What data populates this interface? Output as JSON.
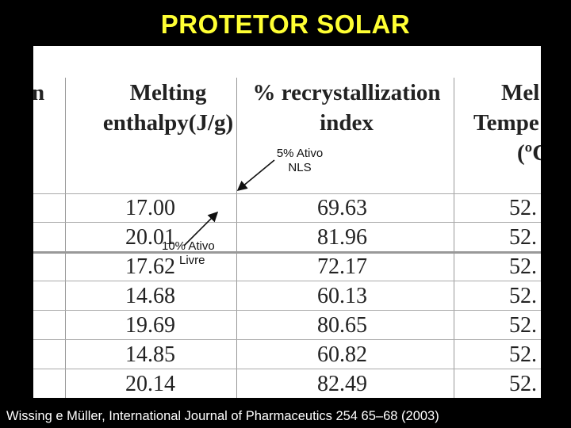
{
  "slide": {
    "title": "PROTETOR SOLAR"
  },
  "table": {
    "headers": {
      "col0": "n",
      "col1_line1": "Melting",
      "col1_line2": "enthalpy(J/g)",
      "col2_line1": "% recrystallization",
      "col2_line2": "index",
      "col3_line1": "Mel",
      "col3_line2": "Tempe",
      "col3_line3": "(ºC"
    },
    "rows": [
      {
        "enthalpy": "17.00",
        "index": "69.63",
        "temp": "52."
      },
      {
        "enthalpy": "20.01",
        "index": "81.96",
        "temp": "52."
      },
      {
        "enthalpy": "17.62",
        "index": "72.17",
        "temp": "52."
      },
      {
        "enthalpy": "14.68",
        "index": "60.13",
        "temp": "52."
      },
      {
        "enthalpy": "19.69",
        "index": "80.65",
        "temp": "52."
      },
      {
        "enthalpy": "14.85",
        "index": "60.82",
        "temp": "52."
      },
      {
        "enthalpy": "20.14",
        "index": "82.49",
        "temp": "52."
      }
    ]
  },
  "annotations": {
    "nls_line1": "5% Ativo",
    "nls_line2": "NLS",
    "livre_line1": "10% Ativo",
    "livre_line2": "Livre"
  },
  "citation": "Wissing e Müller, International Journal of Pharmaceutics 254 65–68 (2003)"
}
